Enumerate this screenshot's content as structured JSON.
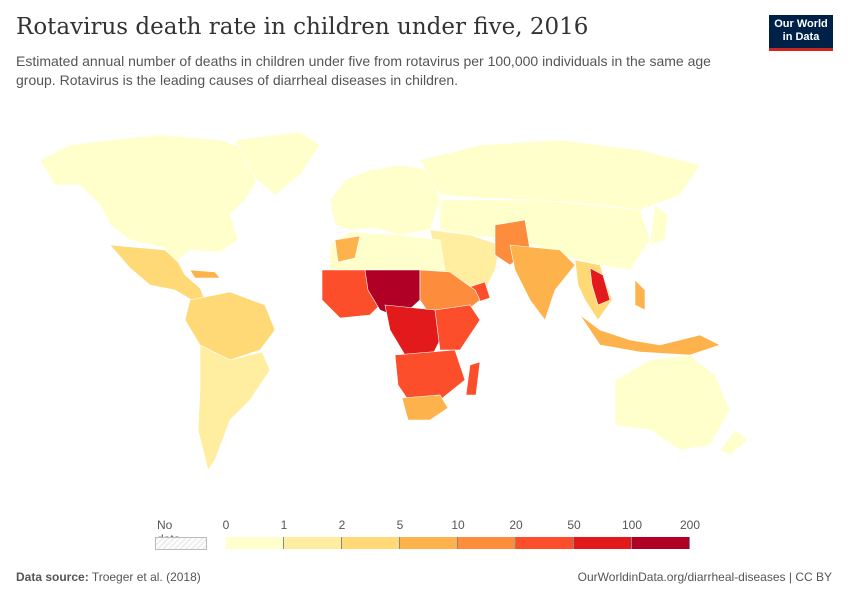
{
  "header": {
    "title": "Rotavirus death rate in children under five, 2016",
    "subtitle": "Estimated annual number of deaths in children under five from rotavirus per 100,000 individuals in the same age group. Rotavirus is the leading causes of diarrheal diseases in children.",
    "logo": "Our World in Data"
  },
  "legend": {
    "no_data": "No data",
    "ticks": [
      "0",
      "1",
      "2",
      "5",
      "10",
      "20",
      "50",
      "100",
      "200"
    ],
    "colors": [
      "#ffffcc",
      "#ffeda0",
      "#fed976",
      "#feb24c",
      "#fd8d3c",
      "#fc4e2a",
      "#e31a1c",
      "#b10026"
    ]
  },
  "footer": {
    "source_label": "Data source:",
    "source": "Troeger et al. (2018)",
    "url": "OurWorldinData.org/diarrheal-diseases | CC BY"
  }
}
